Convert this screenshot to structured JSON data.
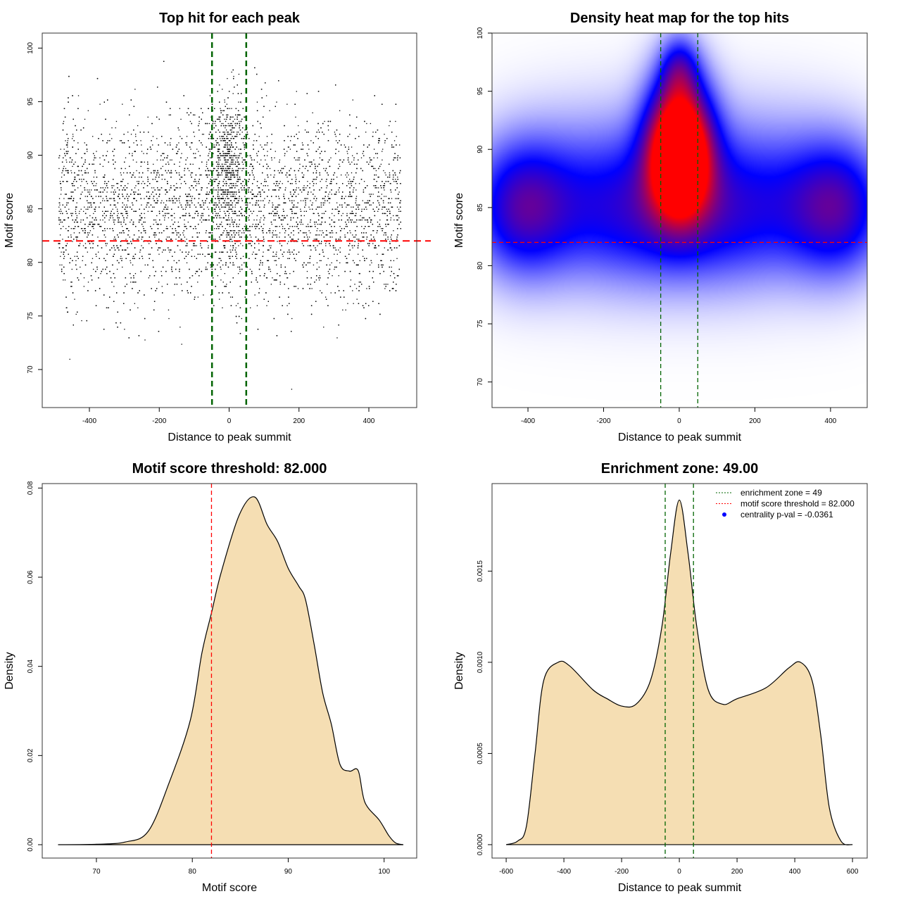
{
  "chart_data": [
    {
      "type": "scatter",
      "title": "Top hit for each peak",
      "xlabel": "Distance to peak summit",
      "ylabel": "Motif score",
      "xlim": [
        -535,
        537
      ],
      "ylim": [
        66.45,
        101.4
      ],
      "xticks": [
        -400,
        -200,
        0,
        200,
        400
      ],
      "yticks": [
        70,
        75,
        80,
        85,
        90,
        95,
        100
      ],
      "vlines": [
        -49,
        49
      ],
      "hline": 82,
      "vline_color": "#006400",
      "hline_color": "#ff0000",
      "point_color": "#000000"
    },
    {
      "type": "heatmap",
      "title": "Density heat map for the top hits",
      "xlabel": "Distance to peak summit",
      "ylabel": "Motif score",
      "xlim": [
        -495,
        497
      ],
      "ylim": [
        67.8,
        100
      ],
      "xticks": [
        -400,
        -200,
        0,
        200,
        400
      ],
      "yticks": [
        70,
        75,
        80,
        85,
        90,
        95,
        100
      ],
      "vlines": [
        -49,
        49
      ],
      "hline": 82,
      "colors": [
        "#ffffff",
        "#0000ff",
        "#ff0000"
      ]
    },
    {
      "type": "area",
      "title": "Motif score threshold: 82.000",
      "xlabel": "Motif score",
      "ylabel": "Density",
      "xlim": [
        64.35,
        103.4
      ],
      "ylim": [
        -0.003,
        0.081
      ],
      "xticks": [
        70,
        80,
        90,
        100
      ],
      "yticks": [
        0,
        0.02,
        0.04,
        0.06,
        0.08
      ],
      "ytick_labels": [
        "0.00",
        "0.02",
        "0.04",
        "0.06",
        "0.08"
      ],
      "vline": 82,
      "fill": "#f5deb3",
      "x": [
        66,
        70,
        73,
        75.4,
        77.6,
        79.8,
        81,
        82,
        83,
        84.9,
        86.5,
        87.8,
        88.9,
        90,
        91.1,
        91.8,
        92.7,
        93.6,
        94.5,
        95.4,
        96.4,
        97.3,
        98,
        99.5,
        100.5,
        101.2,
        102
      ],
      "y": [
        0,
        0.0001,
        0.0006,
        0.003,
        0.014,
        0.028,
        0.043,
        0.052,
        0.061,
        0.074,
        0.078,
        0.0718,
        0.068,
        0.062,
        0.058,
        0.055,
        0.045,
        0.034,
        0.027,
        0.018,
        0.0165,
        0.0166,
        0.0095,
        0.0055,
        0.002,
        0.0004,
        0
      ]
    },
    {
      "type": "area",
      "title": "Enrichment zone: 49.00",
      "xlabel": "Distance to peak summit",
      "ylabel": "Density",
      "xlim": [
        -649,
        651
      ],
      "ylim": [
        -7.35e-05,
        0.00198
      ],
      "xticks": [
        -600,
        -400,
        -200,
        0,
        200,
        400,
        600
      ],
      "yticks": [
        0,
        0.0005,
        0.001,
        0.0015
      ],
      "ytick_labels": [
        "0.0000",
        "0.0005",
        "0.0010",
        "0.0015"
      ],
      "vlines": [
        -49,
        49
      ],
      "fill": "#f5deb3",
      "x": [
        -600,
        -560,
        -530,
        -500,
        -470,
        -420,
        -380,
        -300,
        -250,
        -200,
        -150,
        -100,
        -60,
        -30,
        0,
        30,
        60,
        100,
        150,
        200,
        300,
        380,
        420,
        460,
        490,
        520,
        560,
        600
      ],
      "y": [
        0,
        2e-05,
        0.0001,
        0.0005,
        0.0009,
        0.001,
        0.00098,
        0.00085,
        0.0008,
        0.00076,
        0.00077,
        0.0009,
        0.0012,
        0.0016,
        0.00189,
        0.0016,
        0.0012,
        0.00085,
        0.00077,
        0.0008,
        0.00086,
        0.00097,
        0.001,
        0.0009,
        0.0006,
        0.0002,
        2e-05,
        0
      ],
      "legend": {
        "position": "top-right",
        "items": [
          {
            "label": "enrichment zone = 49",
            "color": "#006400",
            "style": "dotted"
          },
          {
            "label": "motif score threshold = 82.000",
            "color": "#ff0000",
            "style": "dotted"
          },
          {
            "label": "centrality p-val = -0.0361",
            "color": "#0000ff",
            "style": "point"
          }
        ]
      }
    }
  ]
}
